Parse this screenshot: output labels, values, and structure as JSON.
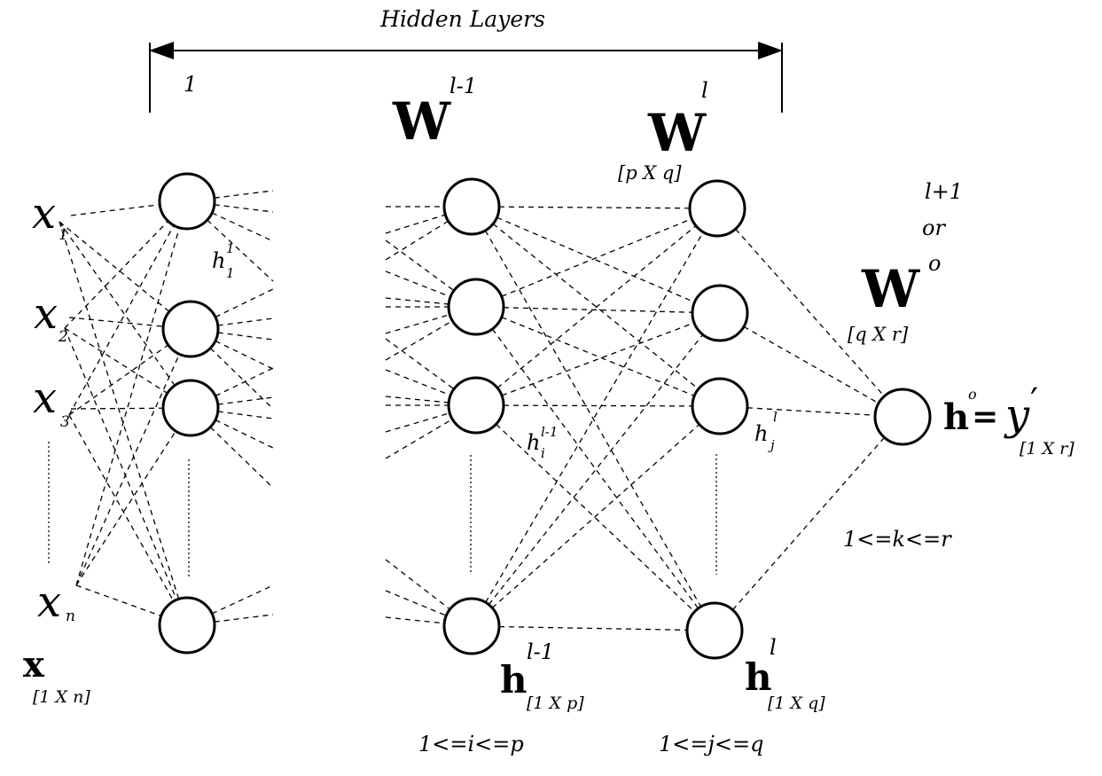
{
  "header": {
    "span_label": "Hidden Layers",
    "first_layer": "1",
    "prev_layer": "l-1"
  },
  "weights": {
    "prev": {
      "symbol": "W",
      "sup": "l-1"
    },
    "cur": {
      "symbol": "W",
      "sup": "l",
      "dims": "[p X q]"
    },
    "out": {
      "symbol": "W",
      "sup_a": "l+1",
      "sup_b": "or",
      "sup_c": "o",
      "dims": "[q X r]"
    }
  },
  "inputs": {
    "x1": {
      "symbol": "x",
      "sub": "1"
    },
    "x2": {
      "symbol": "x",
      "sub": "2"
    },
    "x3": {
      "symbol": "x",
      "sub": "3"
    },
    "xn": {
      "symbol": "x",
      "sub": "n"
    },
    "vector": {
      "symbol": "x",
      "dims": "[1 X n]"
    }
  },
  "hidden_labels": {
    "h11": {
      "symbol": "h",
      "sub": "1",
      "sup": "1"
    },
    "hi": {
      "symbol": "h",
      "sub": "i",
      "sup": "l-1"
    },
    "hj": {
      "symbol": "h",
      "sub": "j",
      "sup": "l"
    }
  },
  "layer_vectors": {
    "prev": {
      "symbol": "h",
      "sup": "l-1",
      "dims": "[1 X p]",
      "range": "1<=i<=p"
    },
    "cur": {
      "symbol": "h",
      "sup": "l",
      "dims": "[1 X q]",
      "range": "1<=j<=q"
    }
  },
  "output": {
    "symbol": "h",
    "sup": "o",
    "equals": "=",
    "y_symbol": "y",
    "prime": "′",
    "dims": "[1 X r]",
    "range": "1<=k<=r"
  }
}
